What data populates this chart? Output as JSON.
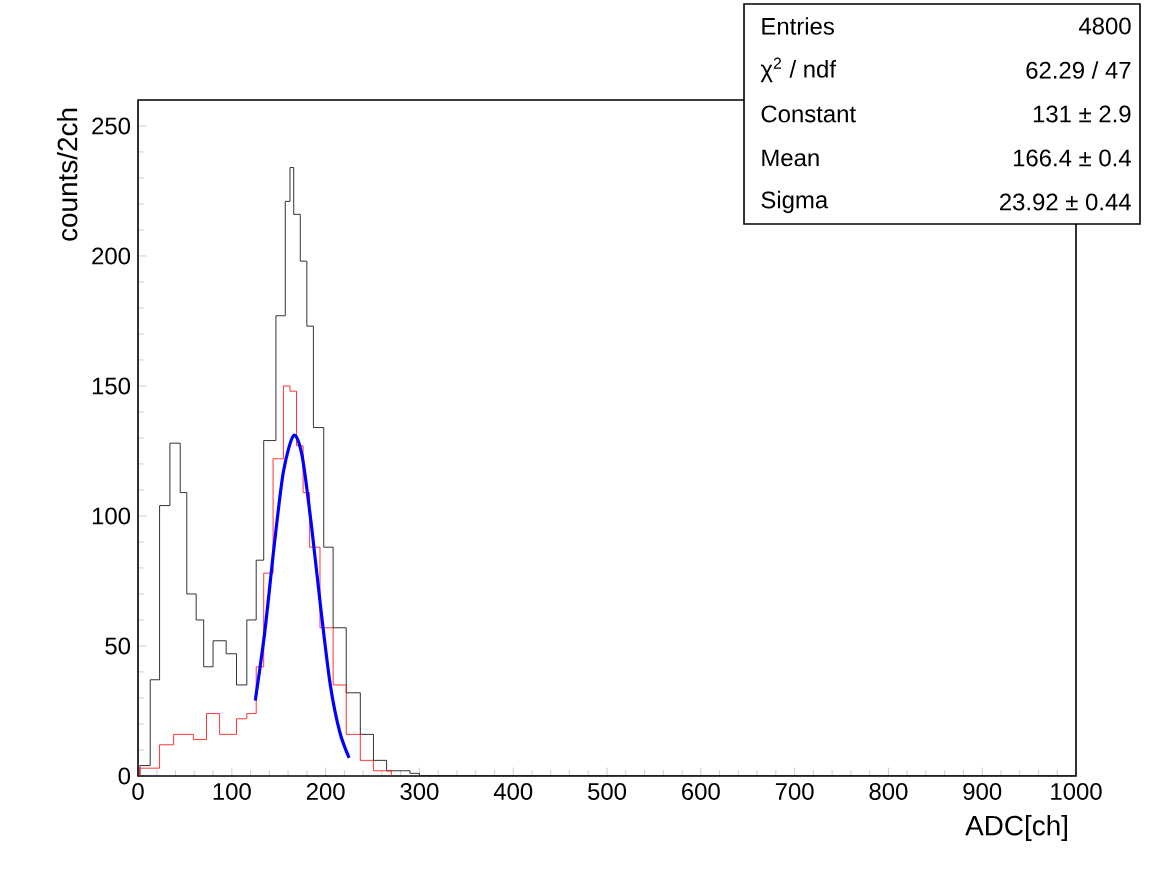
{
  "chart_data": {
    "type": "step",
    "xlabel": "ADC[ch]",
    "ylabel": "counts/2ch",
    "xlim": [
      0,
      1000
    ],
    "ylim": [
      0,
      260
    ],
    "xticks": [
      0,
      100,
      200,
      300,
      400,
      500,
      600,
      700,
      800,
      900,
      1000
    ],
    "yticks": [
      0,
      50,
      100,
      150,
      200,
      250
    ],
    "series": [
      {
        "color": "#000000",
        "x": [
          0,
          2,
          13,
          23,
          34,
          45,
          52,
          62,
          70,
          80,
          94,
          105,
          116,
          126,
          134,
          147,
          157,
          162,
          166,
          173,
          180,
          187,
          198,
          208,
          222,
          237,
          251,
          265,
          290,
          300,
          1000
        ],
        "values": [
          0,
          4,
          37,
          104,
          128,
          109,
          70,
          60,
          42,
          52,
          47,
          35,
          60,
          83,
          129,
          177,
          221,
          234,
          216,
          198,
          173,
          134,
          88,
          57,
          32,
          16,
          6,
          2,
          1,
          0,
          0
        ]
      },
      {
        "color": "#ff0000",
        "x": [
          0,
          2,
          23,
          38,
          59,
          73,
          87,
          105,
          116,
          126,
          134,
          144,
          155,
          162,
          169,
          176,
          183,
          194,
          208,
          222,
          237,
          251,
          270
        ],
        "values": [
          0,
          3,
          12,
          16,
          14,
          24,
          16,
          22,
          24,
          42,
          78,
          122,
          150,
          148,
          127,
          109,
          88,
          57,
          35,
          16,
          6,
          2,
          0
        ]
      },
      {
        "type": "line",
        "color": "#0000ff",
        "x": [
          125,
          135,
          145,
          155,
          166,
          175,
          185,
          195,
          205,
          215,
          225
        ],
        "values": [
          29,
          55,
          88,
          117,
          131,
          123,
          96,
          64,
          35,
          17,
          7
        ]
      }
    ],
    "annotations": [
      "Entries",
      "4800",
      "χ$^{2}$ / ndf",
      "62.29 / 47",
      "Constant",
      "131 ± 2.9",
      "Mean",
      "166.4 ± 0.4",
      "Sigma",
      "23.92 ± 0.44"
    ]
  }
}
